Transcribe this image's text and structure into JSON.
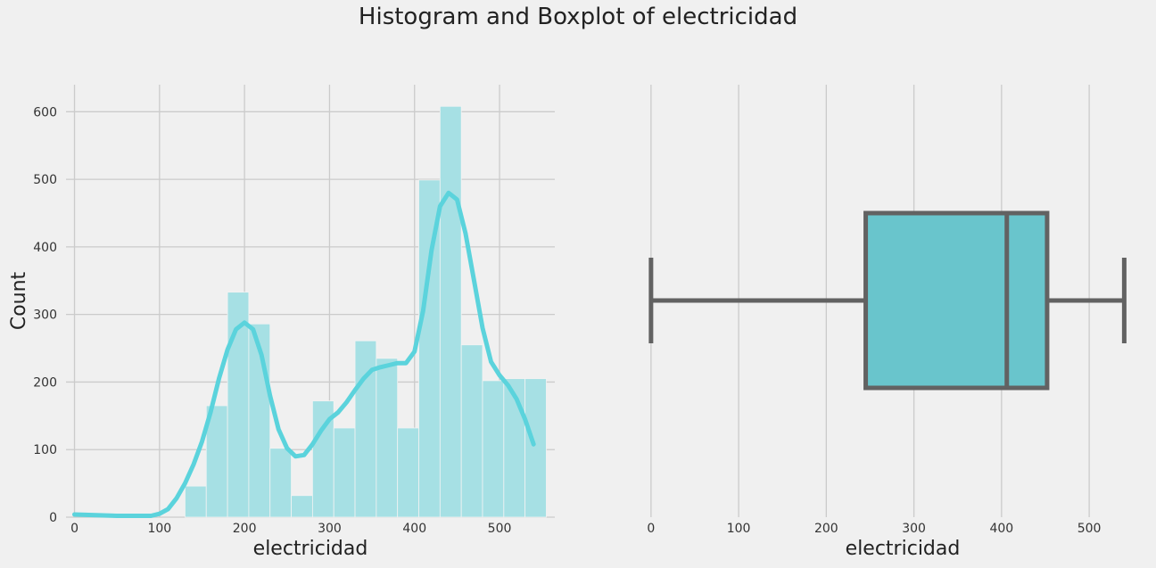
{
  "figure": {
    "title": "Histogram and Boxplot of electricidad"
  },
  "colors": {
    "background": "#f0f0f0",
    "grid": "#cbcbcb",
    "hist_bar": "#a6e0e4",
    "kde_line": "#5bd3dc",
    "box_fill": "#69c5cc",
    "box_line": "#626262"
  },
  "chart_data": [
    {
      "type": "histogram",
      "xlabel": "electricidad",
      "ylabel": "Count",
      "xlim": [
        -10,
        565
      ],
      "ylim": [
        0,
        640
      ],
      "xticks": [
        0,
        100,
        200,
        300,
        400,
        500
      ],
      "yticks": [
        0,
        100,
        200,
        300,
        400,
        500,
        600
      ],
      "grid": true,
      "bin_width": 25,
      "bins": [
        {
          "start": 130,
          "count": 46
        },
        {
          "start": 155,
          "count": 165
        },
        {
          "start": 180,
          "count": 333
        },
        {
          "start": 205,
          "count": 286
        },
        {
          "start": 230,
          "count": 102
        },
        {
          "start": 255,
          "count": 32
        },
        {
          "start": 280,
          "count": 172
        },
        {
          "start": 305,
          "count": 132
        },
        {
          "start": 330,
          "count": 261
        },
        {
          "start": 355,
          "count": 235
        },
        {
          "start": 380,
          "count": 132
        },
        {
          "start": 405,
          "count": 499
        },
        {
          "start": 430,
          "count": 608
        },
        {
          "start": 455,
          "count": 255
        },
        {
          "start": 480,
          "count": 202
        },
        {
          "start": 505,
          "count": 205
        },
        {
          "start": 530,
          "count": 205
        }
      ],
      "kde": {
        "x": [
          0,
          50,
          90,
          100,
          110,
          120,
          130,
          140,
          150,
          160,
          170,
          180,
          190,
          200,
          210,
          220,
          230,
          240,
          250,
          260,
          270,
          280,
          290,
          300,
          310,
          320,
          330,
          340,
          350,
          360,
          370,
          380,
          390,
          400,
          410,
          420,
          430,
          440,
          450,
          460,
          470,
          480,
          490,
          500,
          510,
          520,
          530,
          540
        ],
        "y": [
          4,
          2,
          2,
          5,
          12,
          28,
          50,
          78,
          112,
          155,
          205,
          248,
          278,
          288,
          278,
          240,
          180,
          130,
          102,
          90,
          92,
          108,
          128,
          145,
          155,
          170,
          188,
          205,
          218,
          222,
          225,
          228,
          228,
          245,
          305,
          395,
          460,
          480,
          470,
          420,
          350,
          280,
          230,
          210,
          195,
          175,
          145,
          108
        ]
      }
    },
    {
      "type": "boxplot",
      "xlabel": "electricidad",
      "xlim": [
        -8,
        562
      ],
      "xticks": [
        0,
        100,
        200,
        300,
        400,
        500
      ],
      "grid": true,
      "stats": {
        "whisker_low": 0,
        "q1": 245,
        "median": 406,
        "q3": 452,
        "whisker_high": 540
      }
    }
  ]
}
